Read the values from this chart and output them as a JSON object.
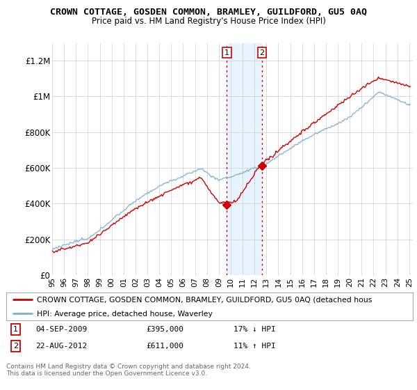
{
  "title": "CROWN COTTAGE, GOSDEN COMMON, BRAMLEY, GUILDFORD, GU5 0AQ",
  "subtitle": "Price paid vs. HM Land Registry's House Price Index (HPI)",
  "ylabel_ticks": [
    "£0",
    "£200K",
    "£400K",
    "£600K",
    "£800K",
    "£1M",
    "£1.2M"
  ],
  "ytick_values": [
    0,
    200000,
    400000,
    600000,
    800000,
    1000000,
    1200000
  ],
  "ylim": [
    0,
    1300000
  ],
  "xlim": [
    1995,
    2025.3
  ],
  "red_color": "#cc0000",
  "blue_color": "#7bafd4",
  "shaded_color": "#ddeeff",
  "shaded_region": [
    2009.67,
    2012.63
  ],
  "marker1_x": 2009.67,
  "marker1_y": 395000,
  "marker2_x": 2012.63,
  "marker2_y": 611000,
  "legend_red": "CROWN COTTAGE, GOSDEN COMMON, BRAMLEY, GUILDFORD, GU5 0AQ (detached hous",
  "legend_blue": "HPI: Average price, detached house, Waverley",
  "note1_num": "1",
  "note1_date": "04-SEP-2009",
  "note1_price": "£395,000",
  "note1_hpi": "17% ↓ HPI",
  "note2_num": "2",
  "note2_date": "22-AUG-2012",
  "note2_price": "£611,000",
  "note2_hpi": "11% ↑ HPI",
  "footer": "Contains HM Land Registry data © Crown copyright and database right 2024.\nThis data is licensed under the Open Government Licence v3.0.",
  "background_color": "#ffffff",
  "plot_bg_color": "#ffffff",
  "grid_color": "#cccccc"
}
